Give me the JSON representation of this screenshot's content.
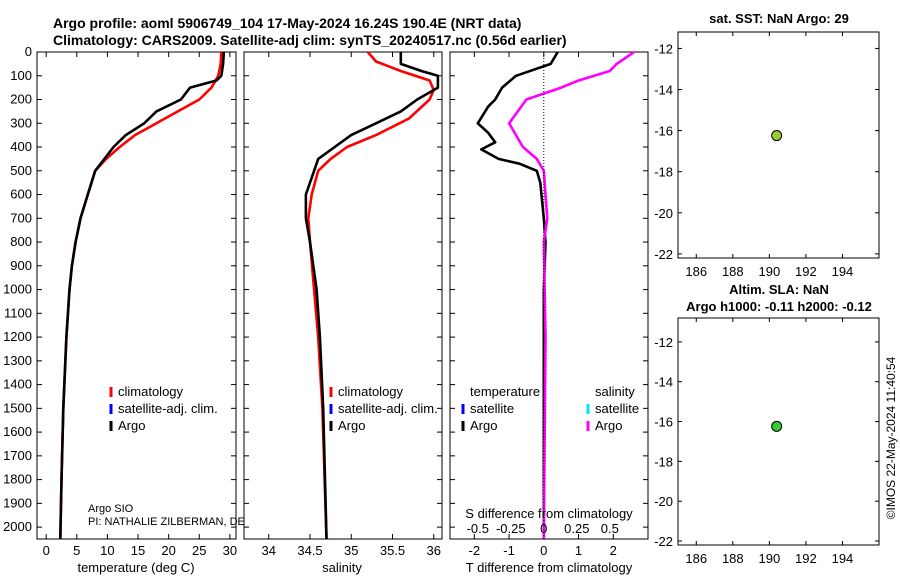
{
  "header": {
    "title_line1": "Argo profile: aoml 5906749_104 17-May-2024 16.24S 190.4E (NRT data)",
    "title_line2": "Climatology: CARS2009. Satellite-adj clim: synTS_20240517.nc (0.56d earlier)"
  },
  "footer_credit": {
    "line1": "Argo SIO",
    "line2": "PI: NATHALIE ZILBERMAN, DE"
  },
  "timestamp": "©IMOS 22-May-2024 11:40:54",
  "colors": {
    "climatology": "#ff0000",
    "satellite_adj": "#0000ff",
    "argo": "#000000",
    "salinity_diff_argo": "#ff00ff",
    "salinity_satellite": "#00e5ee",
    "sst_marker": "#9acd32",
    "sla_marker": "#33cc33"
  },
  "chart_data": [
    {
      "id": "temperature",
      "type": "line",
      "xlabel": "temperature (deg C)",
      "xlim": [
        -1.5,
        31
      ],
      "ylim": [
        0,
        2050
      ],
      "xticks": [
        0,
        5,
        10,
        15,
        20,
        25,
        30
      ],
      "yticks": [
        0,
        100,
        200,
        300,
        400,
        500,
        600,
        700,
        800,
        900,
        1000,
        1100,
        1200,
        1300,
        1400,
        1500,
        1600,
        1700,
        1800,
        1900,
        2000
      ],
      "legend": [
        "climatology",
        "satellite-adj. clim.",
        "Argo"
      ],
      "series": [
        {
          "name": "climatology",
          "x": [
            28.6,
            28.5,
            28.1,
            27.0,
            25.0,
            21.5,
            18.0,
            14.5,
            12.0,
            9.8,
            8.0,
            6.8,
            5.6,
            4.8,
            4.2,
            3.8,
            3.3,
            2.8,
            2.5,
            2.3
          ],
          "y": [
            0,
            50,
            100,
            150,
            200,
            250,
            300,
            350,
            400,
            450,
            500,
            600,
            700,
            800,
            900,
            1000,
            1200,
            1500,
            1800,
            2050
          ]
        },
        {
          "name": "Argo",
          "x": [
            29.0,
            28.9,
            28.6,
            27.8,
            23.5,
            22.0,
            18.0,
            16.0,
            13.0,
            11.0,
            9.5,
            8.0,
            6.8,
            5.6,
            4.8,
            4.2,
            3.8,
            3.3,
            2.8,
            2.5,
            2.3
          ],
          "y": [
            0,
            50,
            100,
            120,
            150,
            200,
            250,
            300,
            350,
            400,
            450,
            500,
            600,
            700,
            800,
            900,
            1000,
            1200,
            1500,
            1800,
            2050
          ]
        }
      ]
    },
    {
      "id": "salinity",
      "type": "line",
      "xlabel": "salinity",
      "xlim": [
        33.7,
        36.1
      ],
      "ylim": [
        0,
        2050
      ],
      "xticks": [
        34,
        34.5,
        35,
        35.5,
        36
      ],
      "legend": [
        "climatology",
        "satellite-adj. clim.",
        "Argo"
      ],
      "series": [
        {
          "name": "climatology",
          "x": [
            35.2,
            35.3,
            35.6,
            35.95,
            36.0,
            35.95,
            35.7,
            35.3,
            34.95,
            34.75,
            34.6,
            34.52,
            34.48,
            34.5,
            34.55,
            34.6,
            34.65,
            34.7
          ],
          "y": [
            0,
            40,
            80,
            120,
            160,
            200,
            280,
            350,
            400,
            450,
            500,
            600,
            700,
            800,
            1000,
            1200,
            1500,
            2050
          ]
        },
        {
          "name": "Argo",
          "x": [
            35.6,
            35.6,
            35.85,
            36.05,
            36.05,
            35.8,
            35.6,
            35.3,
            35.0,
            34.8,
            34.6,
            34.55,
            34.45,
            34.45,
            34.5,
            34.58,
            34.62,
            34.66,
            34.7
          ],
          "y": [
            0,
            50,
            80,
            100,
            150,
            200,
            250,
            300,
            350,
            400,
            450,
            500,
            600,
            700,
            800,
            1000,
            1200,
            1500,
            2050
          ]
        }
      ]
    },
    {
      "id": "difference",
      "type": "line",
      "xlabel": "T difference from climatology",
      "xlim": [
        -2.7,
        3.0
      ],
      "ylim": [
        0,
        2050
      ],
      "xticks": [
        -2,
        -1,
        0,
        1,
        2
      ],
      "top_axis_label": "S difference from climatology",
      "top_ticks": [
        "-0.5",
        "-0.25",
        "0",
        "0.25",
        "0.5"
      ],
      "legend_groups": [
        {
          "title": "temperature",
          "entries": [
            "satellite",
            "Argo"
          ]
        },
        {
          "title": "salinity",
          "entries": [
            "satellite",
            "Argo"
          ]
        }
      ],
      "series": [
        {
          "name": "T Argo",
          "x": [
            0.4,
            0.2,
            -0.8,
            -1.2,
            -1.4,
            -1.6,
            -1.9,
            -1.6,
            -1.4,
            -1.8,
            -1.3,
            -0.7,
            -0.2,
            -0.1,
            0.0,
            0.05,
            0.0,
            0.0,
            0.0
          ],
          "y": [
            0,
            50,
            100,
            150,
            200,
            230,
            300,
            340,
            380,
            410,
            450,
            470,
            500,
            550,
            700,
            800,
            1000,
            1500,
            2050
          ]
        },
        {
          "name": "S Argo",
          "x": [
            2.6,
            2.1,
            1.9,
            1.0,
            0.5,
            -0.5,
            -1.0,
            -0.8,
            -0.6,
            -0.2,
            0.0,
            0.05,
            0.1,
            0.0,
            0.05,
            0.0
          ],
          "y": [
            0,
            50,
            80,
            120,
            150,
            200,
            300,
            350,
            400,
            450,
            500,
            600,
            700,
            800,
            1200,
            2050
          ]
        }
      ]
    },
    {
      "id": "sst_map",
      "type": "scatter",
      "title": "sat. SST: NaN Argo: 29",
      "xlim": [
        185,
        196
      ],
      "ylim": [
        -22.2,
        -11.2
      ],
      "xticks": [
        186,
        188,
        190,
        192,
        194
      ],
      "yticks": [
        -12,
        -14,
        -16,
        -18,
        -20,
        -22
      ],
      "points": [
        {
          "x": 190.4,
          "y": -16.24
        }
      ]
    },
    {
      "id": "sla_map",
      "type": "scatter",
      "title": "Altim. SLA: NaN",
      "subtitle": "Argo h1000: -0.11 h2000: -0.12",
      "xlim": [
        185,
        196
      ],
      "ylim": [
        -22.2,
        -10.8
      ],
      "xticks": [
        186,
        188,
        190,
        192,
        194
      ],
      "yticks": [
        -12,
        -14,
        -16,
        -18,
        -20,
        -22
      ],
      "points": [
        {
          "x": 190.4,
          "y": -16.24
        }
      ]
    }
  ]
}
